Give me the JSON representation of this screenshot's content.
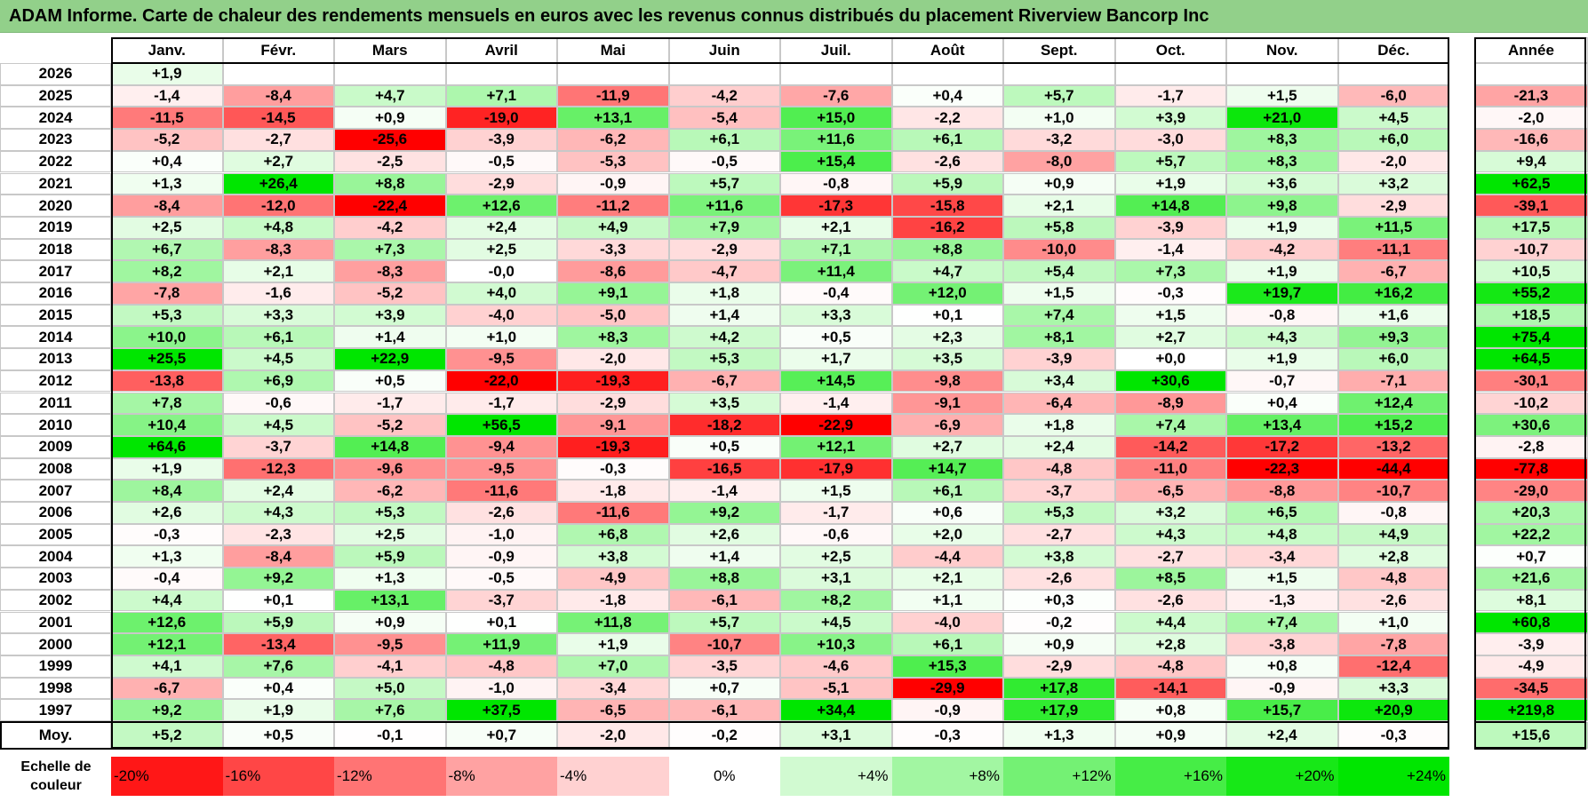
{
  "title": "ADAM Informe. Carte de chaleur des rendements mensuels en euros avec les revenus connus distribués du placement Riverview Bancorp Inc",
  "colors": {
    "title_bar": "#92d08a",
    "negative_max": "#ff0000",
    "positive_max": "#00e600",
    "neutral": "#ffffff"
  },
  "chart_data": {
    "type": "heatmap",
    "columns": [
      "Janv.",
      "Févr.",
      "Mars",
      "Avril",
      "Mai",
      "Juin",
      "Juil.",
      "Août",
      "Sept.",
      "Oct.",
      "Nov.",
      "Déc."
    ],
    "annual_header": "Année",
    "rows": [
      {
        "year": "2026",
        "months": [
          "+1,9",
          "",
          "",
          "",
          "",
          "",
          "",
          "",
          "",
          "",
          "",
          ""
        ],
        "annual": ""
      },
      {
        "year": "2025",
        "months": [
          "-1,4",
          "-8,4",
          "+4,7",
          "+7,1",
          "-11,9",
          "-4,2",
          "-7,6",
          "+0,4",
          "+5,7",
          "-1,7",
          "+1,5",
          "-6,0"
        ],
        "annual": "-21,3"
      },
      {
        "year": "2024",
        "months": [
          "-11,5",
          "-14,5",
          "+0,9",
          "-19,0",
          "+13,1",
          "-5,4",
          "+15,0",
          "-2,2",
          "+1,0",
          "+3,9",
          "+21,0",
          "+4,5"
        ],
        "annual": "-2,0"
      },
      {
        "year": "2023",
        "months": [
          "-5,2",
          "-2,7",
          "-25,6",
          "-3,9",
          "-6,2",
          "+6,1",
          "+11,6",
          "+6,1",
          "-3,2",
          "-3,0",
          "+8,3",
          "+6,0"
        ],
        "annual": "-16,6"
      },
      {
        "year": "2022",
        "months": [
          "+0,4",
          "+2,7",
          "-2,5",
          "-0,5",
          "-5,3",
          "-0,5",
          "+15,4",
          "-2,6",
          "-8,0",
          "+5,7",
          "+8,3",
          "-2,0"
        ],
        "annual": "+9,4"
      },
      {
        "year": "2021",
        "months": [
          "+1,3",
          "+26,4",
          "+8,8",
          "-2,9",
          "-0,9",
          "+5,7",
          "-0,8",
          "+5,9",
          "+0,9",
          "+1,9",
          "+3,6",
          "+3,2"
        ],
        "annual": "+62,5"
      },
      {
        "year": "2020",
        "months": [
          "-8,4",
          "-12,0",
          "-22,4",
          "+12,6",
          "-11,2",
          "+11,6",
          "-17,3",
          "-15,8",
          "+2,1",
          "+14,8",
          "+9,8",
          "-2,9"
        ],
        "annual": "-39,1"
      },
      {
        "year": "2019",
        "months": [
          "+2,5",
          "+4,8",
          "-4,2",
          "+2,4",
          "+4,9",
          "+7,9",
          "+2,1",
          "-16,2",
          "+5,8",
          "-3,9",
          "+1,9",
          "+11,5"
        ],
        "annual": "+17,5"
      },
      {
        "year": "2018",
        "months": [
          "+6,7",
          "-8,3",
          "+7,3",
          "+2,5",
          "-3,3",
          "-2,9",
          "+7,1",
          "+8,8",
          "-10,0",
          "-1,4",
          "-4,2",
          "-11,1"
        ],
        "annual": "-10,7"
      },
      {
        "year": "2017",
        "months": [
          "+8,2",
          "+2,1",
          "-8,3",
          "-0,0",
          "-8,6",
          "-4,7",
          "+11,4",
          "+4,7",
          "+5,4",
          "+7,3",
          "+1,9",
          "-6,7"
        ],
        "annual": "+10,5"
      },
      {
        "year": "2016",
        "months": [
          "-7,8",
          "-1,6",
          "-5,2",
          "+4,0",
          "+9,1",
          "+1,8",
          "-0,4",
          "+12,0",
          "+1,5",
          "-0,3",
          "+19,7",
          "+16,2"
        ],
        "annual": "+55,2"
      },
      {
        "year": "2015",
        "months": [
          "+5,3",
          "+3,3",
          "+3,9",
          "-4,0",
          "-5,0",
          "+1,4",
          "+3,3",
          "+0,1",
          "+7,4",
          "+1,5",
          "-0,8",
          "+1,6"
        ],
        "annual": "+18,5"
      },
      {
        "year": "2014",
        "months": [
          "+10,0",
          "+6,1",
          "+1,4",
          "+1,0",
          "+8,3",
          "+4,2",
          "+0,5",
          "+2,3",
          "+8,1",
          "+2,7",
          "+4,3",
          "+9,3"
        ],
        "annual": "+75,4"
      },
      {
        "year": "2013",
        "months": [
          "+25,5",
          "+4,5",
          "+22,9",
          "-9,5",
          "-2,0",
          "+5,3",
          "+1,7",
          "+3,5",
          "-3,9",
          "+0,0",
          "+1,9",
          "+6,0"
        ],
        "annual": "+64,5"
      },
      {
        "year": "2012",
        "months": [
          "-13,8",
          "+6,9",
          "+0,5",
          "-22,0",
          "-19,3",
          "-6,7",
          "+14,5",
          "-9,8",
          "+3,4",
          "+30,6",
          "-0,7",
          "-7,1"
        ],
        "annual": "-30,1"
      },
      {
        "year": "2011",
        "months": [
          "+7,8",
          "-0,6",
          "-1,7",
          "-1,7",
          "-2,9",
          "+3,5",
          "-1,4",
          "-9,1",
          "-6,4",
          "-8,9",
          "+0,4",
          "+12,4"
        ],
        "annual": "-10,2"
      },
      {
        "year": "2010",
        "months": [
          "+10,4",
          "+4,5",
          "-5,2",
          "+56,5",
          "-9,1",
          "-18,2",
          "-22,9",
          "-6,9",
          "+1,8",
          "+7,4",
          "+13,4",
          "+15,2"
        ],
        "annual": "+30,6"
      },
      {
        "year": "2009",
        "months": [
          "+64,6",
          "-3,7",
          "+14,8",
          "-9,4",
          "-19,3",
          "+0,5",
          "+12,1",
          "+2,7",
          "+2,4",
          "-14,2",
          "-17,2",
          "-13,2"
        ],
        "annual": "-2,8"
      },
      {
        "year": "2008",
        "months": [
          "+1,9",
          "-12,3",
          "-9,6",
          "-9,5",
          "-0,3",
          "-16,5",
          "-17,9",
          "+14,7",
          "-4,8",
          "-11,0",
          "-22,3",
          "-44,4"
        ],
        "annual": "-77,8"
      },
      {
        "year": "2007",
        "months": [
          "+8,4",
          "+2,4",
          "-6,2",
          "-11,6",
          "-1,8",
          "-1,4",
          "+1,5",
          "+6,1",
          "-3,7",
          "-6,5",
          "-8,8",
          "-10,7"
        ],
        "annual": "-29,0"
      },
      {
        "year": "2006",
        "months": [
          "+2,6",
          "+4,3",
          "+5,3",
          "-2,6",
          "-11,6",
          "+9,2",
          "-1,7",
          "+0,6",
          "+5,3",
          "+3,2",
          "+6,5",
          "-0,8"
        ],
        "annual": "+20,3"
      },
      {
        "year": "2005",
        "months": [
          "-0,3",
          "-2,3",
          "+2,5",
          "-1,0",
          "+6,8",
          "+2,6",
          "-0,6",
          "+2,0",
          "-2,7",
          "+4,3",
          "+4,8",
          "+4,9"
        ],
        "annual": "+22,2"
      },
      {
        "year": "2004",
        "months": [
          "+1,3",
          "-8,4",
          "+5,9",
          "-0,9",
          "+3,8",
          "+1,4",
          "+2,5",
          "-4,4",
          "+3,8",
          "-2,7",
          "-3,4",
          "+2,8"
        ],
        "annual": "+0,7"
      },
      {
        "year": "2003",
        "months": [
          "-0,4",
          "+9,2",
          "+1,3",
          "-0,5",
          "-4,9",
          "+8,8",
          "+3,1",
          "+2,1",
          "-2,6",
          "+8,5",
          "+1,5",
          "-4,8"
        ],
        "annual": "+21,6"
      },
      {
        "year": "2002",
        "months": [
          "+4,4",
          "+0,1",
          "+13,1",
          "-3,7",
          "-1,8",
          "-6,1",
          "+8,2",
          "+1,1",
          "+0,3",
          "-2,6",
          "-1,3",
          "-2,6"
        ],
        "annual": "+8,1"
      },
      {
        "year": "2001",
        "months": [
          "+12,6",
          "+5,9",
          "+0,9",
          "+0,1",
          "+11,8",
          "+5,7",
          "+4,5",
          "-4,0",
          "-0,2",
          "+4,4",
          "+7,4",
          "+1,0"
        ],
        "annual": "+60,8"
      },
      {
        "year": "2000",
        "months": [
          "+12,1",
          "-13,4",
          "-9,5",
          "+11,9",
          "+1,9",
          "-10,7",
          "+10,3",
          "+6,1",
          "+0,9",
          "+2,8",
          "-3,8",
          "-7,8"
        ],
        "annual": "-3,9"
      },
      {
        "year": "1999",
        "months": [
          "+4,1",
          "+7,6",
          "-4,1",
          "-4,8",
          "+7,0",
          "-3,5",
          "-4,6",
          "+15,3",
          "-2,9",
          "-4,8",
          "+0,8",
          "-12,4"
        ],
        "annual": "-4,9"
      },
      {
        "year": "1998",
        "months": [
          "-6,7",
          "+0,4",
          "+5,0",
          "-1,0",
          "-3,4",
          "+0,7",
          "-5,1",
          "-29,9",
          "+17,8",
          "-14,1",
          "-0,9",
          "+3,3"
        ],
        "annual": "-34,5"
      },
      {
        "year": "1997",
        "months": [
          "+9,2",
          "+1,9",
          "+7,6",
          "+37,5",
          "-6,5",
          "-6,1",
          "+34,4",
          "-0,9",
          "+17,9",
          "+0,8",
          "+15,7",
          "+20,9"
        ],
        "annual": "+219,8"
      }
    ],
    "average": {
      "label": "Moy.",
      "months": [
        "+5,2",
        "+0,5",
        "-0,1",
        "+0,7",
        "-2,0",
        "-0,2",
        "+3,1",
        "-0,3",
        "+1,3",
        "+0,9",
        "+2,4",
        "-0,3"
      ],
      "annual": "+15,6"
    },
    "color_scale": {
      "label": "Echelle de couleur",
      "labels": [
        "-20%",
        "-16%",
        "-12%",
        "-8%",
        "-4%",
        "0%",
        "+4%",
        "+8%",
        "+12%",
        "+16%",
        "+20%",
        "+24%"
      ],
      "values": [
        -20,
        -16,
        -12,
        -8,
        -4,
        0,
        4,
        8,
        12,
        16,
        20,
        24
      ]
    }
  }
}
